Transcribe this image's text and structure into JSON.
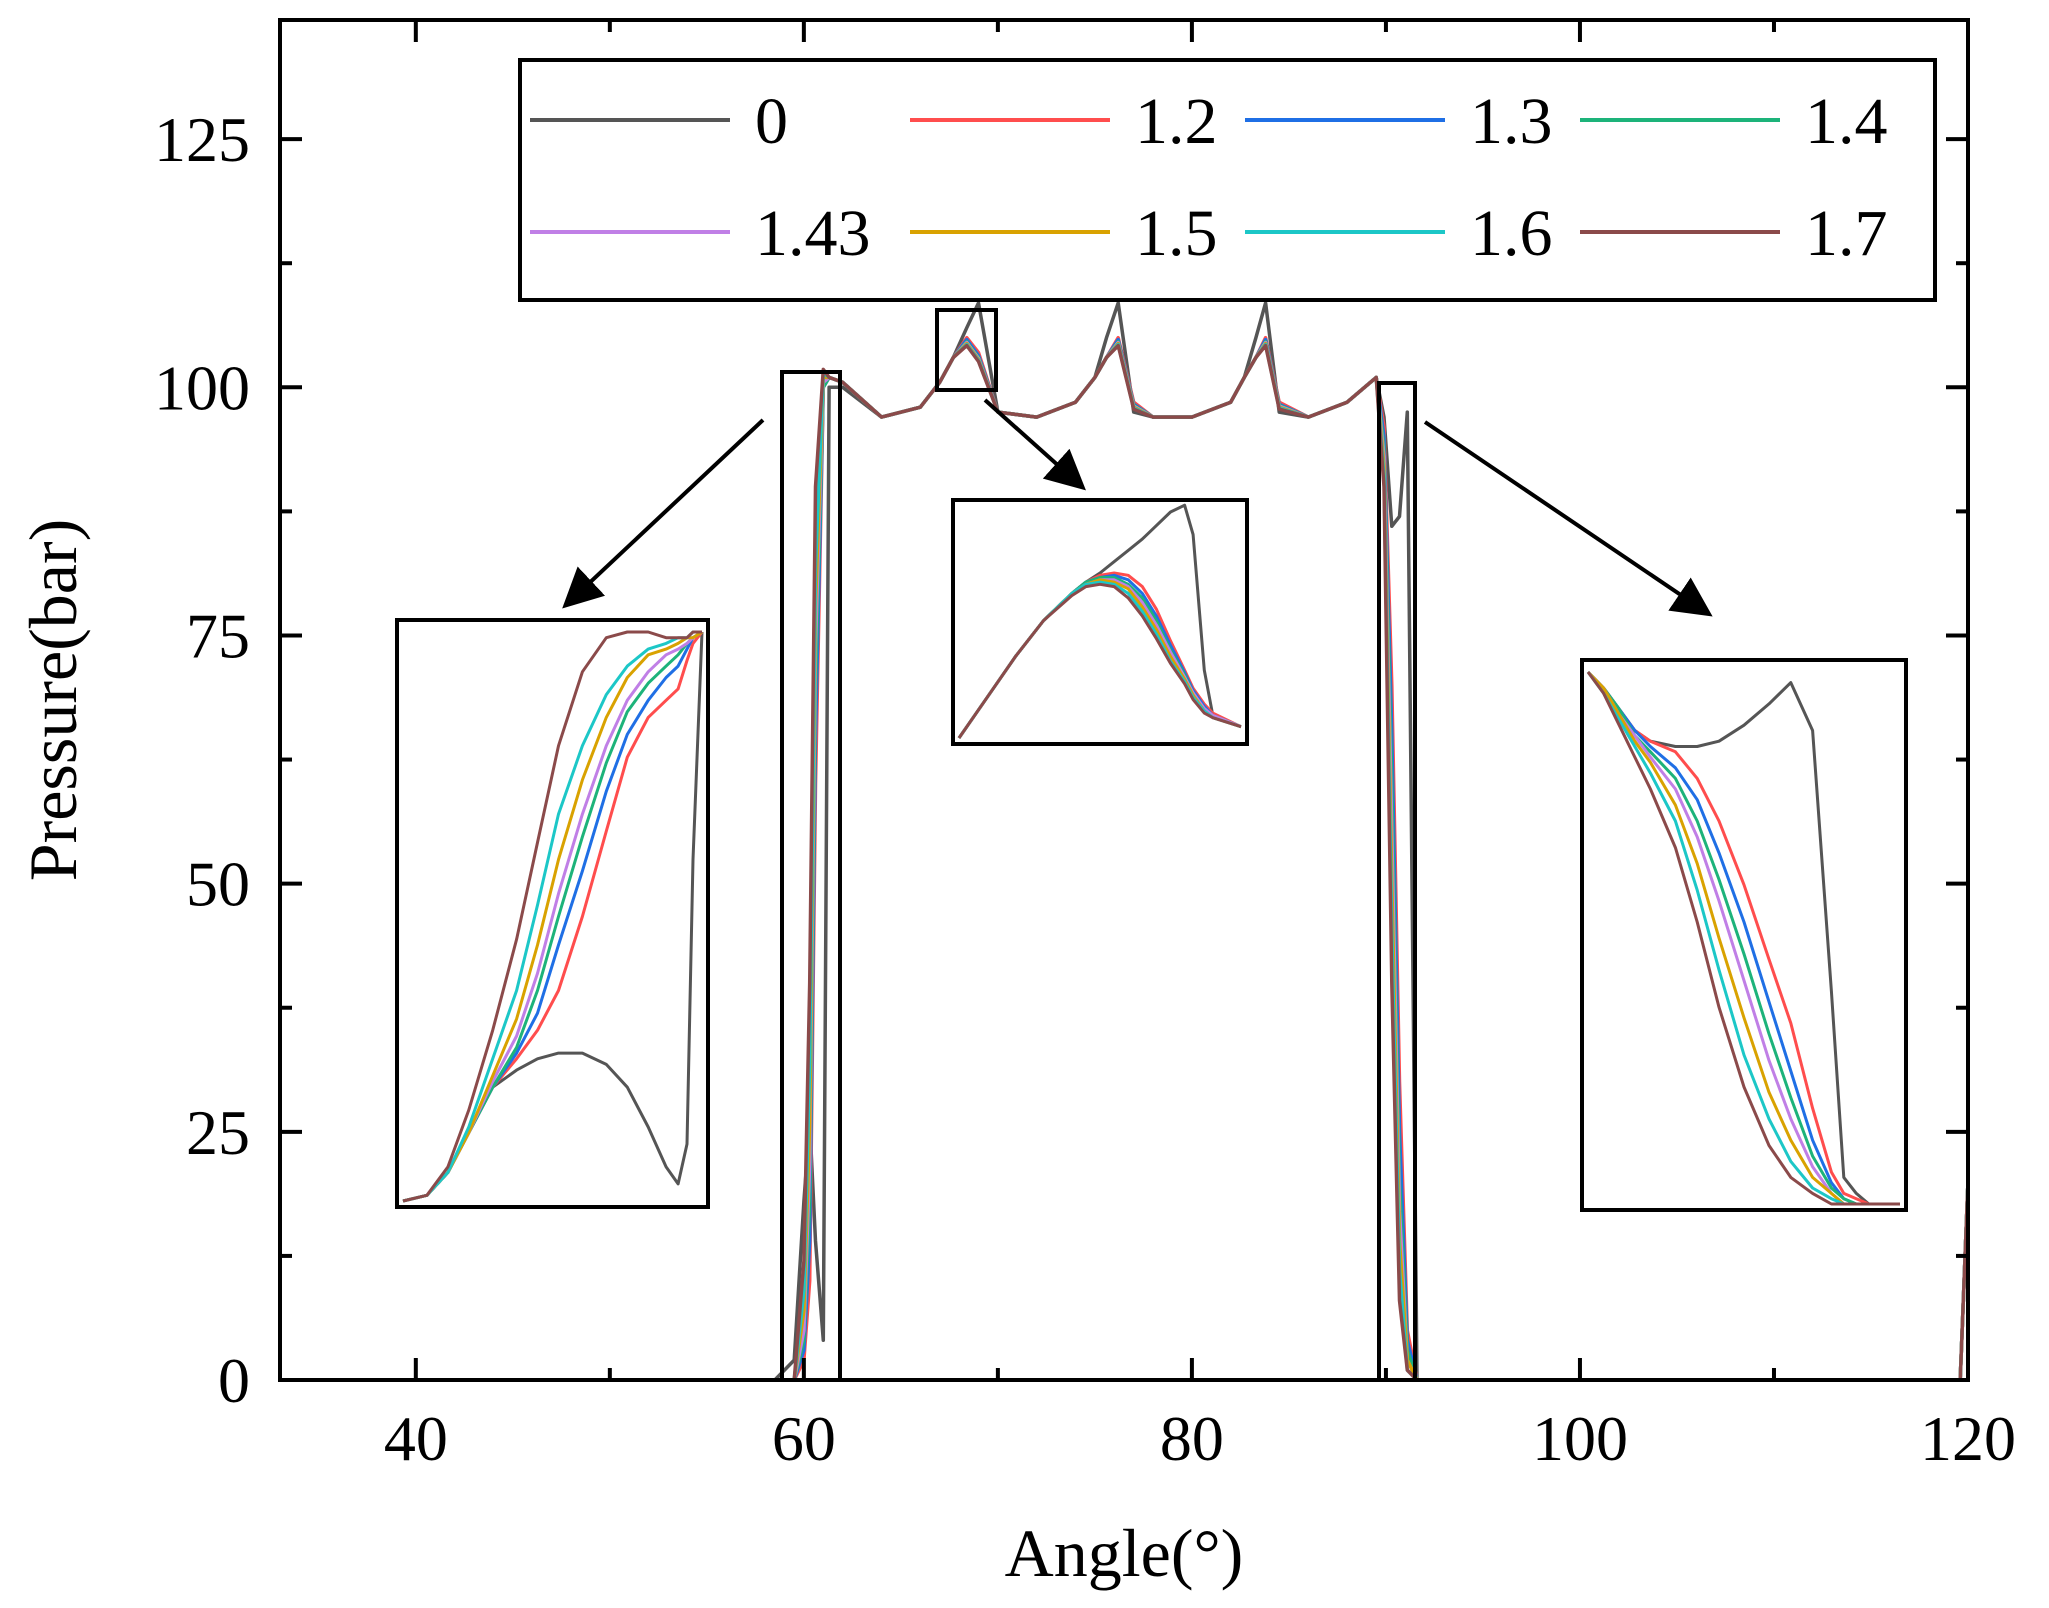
{
  "chart_data": {
    "type": "line",
    "title": "",
    "xlabel": "Angle(°)",
    "ylabel": "Pressure(bar)",
    "xlim": [
      33,
      120
    ],
    "ylim": [
      0,
      137
    ],
    "xticks": [
      "40",
      "60",
      "80",
      "100",
      "120"
    ],
    "xtick_values": [
      40,
      60,
      80,
      100,
      120
    ],
    "yticks": [
      "0",
      "25",
      "50",
      "75",
      "100",
      "125"
    ],
    "ytick_values": [
      0,
      25,
      50,
      75,
      100,
      125
    ],
    "grid": false,
    "legend_position": "top-right",
    "legend_columns": 4,
    "x": [
      33,
      58.5,
      59.5,
      60.0,
      60.3,
      60.6,
      61.0,
      61.3,
      62.0,
      64.0,
      66.0,
      67.0,
      67.7,
      68.4,
      69.0,
      70.0,
      72.0,
      74.0,
      75.0,
      75.6,
      76.2,
      77.0,
      78.0,
      80.0,
      82.0,
      82.7,
      83.3,
      83.8,
      84.5,
      86.0,
      88.0,
      89.5,
      89.9,
      90.3,
      90.7,
      91.1,
      91.6,
      92.0,
      119.6,
      120.0
    ],
    "series": [
      {
        "name": "0",
        "color": "#555555",
        "values": [
          0,
          0,
          2,
          18,
          26,
          14,
          4,
          100,
          100,
          97,
          98,
          100.5,
          103,
          106,
          108.5,
          97.5,
          97,
          98.5,
          101,
          105,
          108.5,
          97.5,
          97,
          97,
          98.5,
          101,
          105,
          108.5,
          97.5,
          97,
          98.5,
          101,
          97,
          86,
          87,
          97.5,
          0,
          0,
          0,
          20
        ]
      },
      {
        "name": "1.2",
        "color": "#ff4d4d",
        "values": [
          0,
          0,
          0,
          2,
          10,
          60,
          100,
          101,
          100.5,
          97,
          98,
          100.5,
          103,
          105,
          103.5,
          97.5,
          97,
          98.5,
          101,
          103,
          105,
          98.5,
          97,
          97,
          98.5,
          101,
          103,
          105,
          98.5,
          97,
          98.5,
          101,
          96,
          70,
          30,
          5,
          0,
          0,
          0,
          20
        ]
      },
      {
        "name": "1.3",
        "color": "#1f6fe5",
        "values": [
          0,
          0,
          0,
          3,
          14,
          65,
          100,
          101,
          100.5,
          97,
          98,
          100.5,
          103,
          104.8,
          103.2,
          97.5,
          97,
          98.5,
          101,
          103,
          104.8,
          98.3,
          97,
          97,
          98.5,
          101,
          103,
          104.8,
          98.3,
          97,
          98.5,
          101,
          95,
          65,
          25,
          4,
          0,
          0,
          0,
          20
        ]
      },
      {
        "name": "1.4",
        "color": "#1db37a",
        "values": [
          0,
          0,
          0,
          4,
          18,
          70,
          100,
          101,
          100.5,
          97,
          98,
          100.5,
          103,
          104.6,
          103,
          97.5,
          97,
          98.5,
          101,
          103,
          104.6,
          98.2,
          97,
          97,
          98.5,
          101,
          103,
          104.6,
          98.2,
          97,
          98.5,
          101,
          94,
          60,
          20,
          3,
          0,
          0,
          0,
          20
        ]
      },
      {
        "name": "1.43",
        "color": "#c07fe6",
        "values": [
          0,
          0,
          0,
          5,
          22,
          74,
          100.5,
          101,
          100.5,
          97,
          98,
          100.5,
          103,
          104.5,
          102.9,
          97.5,
          97,
          98.5,
          101,
          103,
          104.5,
          98.1,
          97,
          97,
          98.5,
          101,
          103,
          104.5,
          98.1,
          97,
          98.5,
          101,
          93,
          55,
          17,
          2,
          0,
          0,
          0,
          20
        ]
      },
      {
        "name": "1.5",
        "color": "#d9a200",
        "values": [
          0,
          0,
          0,
          7,
          26,
          78,
          101,
          101,
          100.5,
          97,
          98,
          100.5,
          103,
          104.4,
          102.8,
          97.5,
          97,
          98.5,
          101,
          103,
          104.4,
          98,
          97,
          97,
          98.5,
          101,
          103,
          104.4,
          98,
          97,
          98.5,
          101,
          92,
          50,
          14,
          2,
          0,
          0,
          0,
          20
        ]
      },
      {
        "name": "1.6",
        "color": "#1cc7c7",
        "values": [
          0,
          0,
          0,
          9,
          32,
          82,
          101.5,
          101,
          100.5,
          97,
          98,
          100.5,
          103,
          104.3,
          102.7,
          97.5,
          97,
          98.5,
          101,
          103,
          104.3,
          97.9,
          97,
          97,
          98.5,
          101,
          103,
          104.3,
          97.9,
          97,
          98.5,
          101,
          91,
          45,
          11,
          1,
          0,
          0,
          0,
          20
        ]
      },
      {
        "name": "1.7",
        "color": "#8b4a4a",
        "values": [
          0,
          0,
          0,
          12,
          40,
          90,
          101.8,
          101,
          100.5,
          97,
          98,
          100.5,
          103,
          104.2,
          102.6,
          97.5,
          97,
          98.5,
          101,
          103,
          104.2,
          97.8,
          97,
          97,
          98.5,
          101,
          103,
          104.2,
          97.8,
          97,
          98.5,
          101,
          90,
          40,
          8,
          1,
          0,
          0,
          0,
          20
        ]
      }
    ],
    "inset_left": {
      "x": [
        0,
        0.08,
        0.15,
        0.22,
        0.3,
        0.38,
        0.45,
        0.52,
        0.6,
        0.68,
        0.75,
        0.82,
        0.88,
        0.92,
        0.95,
        0.97,
        1.0
      ],
      "series": [
        {
          "name": "0",
          "values": [
            0,
            0.01,
            0.05,
            0.12,
            0.2,
            0.23,
            0.25,
            0.26,
            0.26,
            0.24,
            0.2,
            0.13,
            0.06,
            0.03,
            0.1,
            0.6,
            1.0
          ]
        },
        {
          "name": "1.2",
          "values": [
            0,
            0.01,
            0.05,
            0.12,
            0.2,
            0.25,
            0.3,
            0.37,
            0.5,
            0.65,
            0.78,
            0.85,
            0.88,
            0.9,
            0.95,
            0.98,
            1.0
          ]
        },
        {
          "name": "1.3",
          "values": [
            0,
            0.01,
            0.05,
            0.12,
            0.2,
            0.26,
            0.33,
            0.45,
            0.58,
            0.72,
            0.82,
            0.88,
            0.92,
            0.94,
            0.97,
            0.99,
            1.0
          ]
        },
        {
          "name": "1.4",
          "values": [
            0,
            0.01,
            0.05,
            0.12,
            0.2,
            0.27,
            0.37,
            0.5,
            0.64,
            0.77,
            0.86,
            0.91,
            0.94,
            0.96,
            0.98,
            0.99,
            1.0
          ]
        },
        {
          "name": "1.43",
          "values": [
            0,
            0.01,
            0.05,
            0.12,
            0.21,
            0.29,
            0.4,
            0.54,
            0.68,
            0.8,
            0.88,
            0.93,
            0.96,
            0.97,
            0.98,
            0.99,
            1.0
          ]
        },
        {
          "name": "1.5",
          "values": [
            0,
            0.01,
            0.05,
            0.12,
            0.22,
            0.32,
            0.45,
            0.6,
            0.74,
            0.85,
            0.92,
            0.96,
            0.97,
            0.98,
            0.99,
            0.99,
            1.0
          ]
        },
        {
          "name": "1.6",
          "values": [
            0,
            0.01,
            0.05,
            0.13,
            0.25,
            0.37,
            0.52,
            0.68,
            0.8,
            0.89,
            0.94,
            0.97,
            0.98,
            0.99,
            0.99,
            1.0,
            1.0
          ]
        },
        {
          "name": "1.7",
          "values": [
            0,
            0.01,
            0.06,
            0.16,
            0.3,
            0.46,
            0.63,
            0.8,
            0.93,
            0.99,
            1.0,
            1.0,
            0.99,
            0.99,
            0.99,
            1.0,
            1.0
          ]
        }
      ]
    },
    "inset_middle": {
      "x": [
        0,
        0.1,
        0.2,
        0.3,
        0.4,
        0.45,
        0.5,
        0.55,
        0.6,
        0.65,
        0.7,
        0.75,
        0.8,
        0.83,
        0.87,
        0.9,
        1.0
      ],
      "series": [
        {
          "name": "0",
          "values": [
            0,
            0.18,
            0.36,
            0.52,
            0.64,
            0.69,
            0.73,
            0.78,
            0.83,
            0.88,
            0.94,
            1.0,
            1.03,
            0.9,
            0.3,
            0.1,
            0.05
          ]
        },
        {
          "name": "1.2",
          "values": [
            0,
            0.18,
            0.36,
            0.52,
            0.64,
            0.69,
            0.72,
            0.73,
            0.72,
            0.67,
            0.57,
            0.43,
            0.3,
            0.22,
            0.15,
            0.11,
            0.05
          ]
        },
        {
          "name": "1.3",
          "values": [
            0,
            0.18,
            0.36,
            0.52,
            0.64,
            0.69,
            0.71,
            0.72,
            0.7,
            0.64,
            0.54,
            0.41,
            0.29,
            0.21,
            0.14,
            0.1,
            0.05
          ]
        },
        {
          "name": "1.4",
          "values": [
            0,
            0.18,
            0.36,
            0.52,
            0.64,
            0.69,
            0.71,
            0.71,
            0.68,
            0.62,
            0.52,
            0.39,
            0.28,
            0.2,
            0.13,
            0.1,
            0.05
          ]
        },
        {
          "name": "1.43",
          "values": [
            0,
            0.18,
            0.36,
            0.52,
            0.64,
            0.68,
            0.7,
            0.7,
            0.67,
            0.6,
            0.5,
            0.38,
            0.27,
            0.2,
            0.13,
            0.1,
            0.05
          ]
        },
        {
          "name": "1.5",
          "values": [
            0,
            0.18,
            0.36,
            0.52,
            0.64,
            0.68,
            0.7,
            0.69,
            0.66,
            0.58,
            0.48,
            0.36,
            0.26,
            0.19,
            0.12,
            0.09,
            0.05
          ]
        },
        {
          "name": "1.6",
          "values": [
            0,
            0.18,
            0.36,
            0.52,
            0.64,
            0.68,
            0.69,
            0.68,
            0.64,
            0.56,
            0.46,
            0.34,
            0.25,
            0.18,
            0.12,
            0.09,
            0.05
          ]
        },
        {
          "name": "1.7",
          "values": [
            0,
            0.18,
            0.36,
            0.52,
            0.63,
            0.67,
            0.68,
            0.67,
            0.62,
            0.54,
            0.44,
            0.33,
            0.24,
            0.17,
            0.11,
            0.09,
            0.05
          ]
        }
      ]
    },
    "inset_right": {
      "x": [
        0,
        0.05,
        0.1,
        0.15,
        0.2,
        0.28,
        0.35,
        0.42,
        0.5,
        0.58,
        0.65,
        0.72,
        0.78,
        0.82,
        0.86,
        0.9,
        0.94,
        1.0
      ],
      "series": [
        {
          "name": "0",
          "values": [
            1.0,
            0.97,
            0.93,
            0.89,
            0.87,
            0.86,
            0.86,
            0.87,
            0.9,
            0.94,
            0.98,
            0.89,
            0.4,
            0.05,
            0.02,
            0.0,
            0.0,
            0.0
          ]
        },
        {
          "name": "1.2",
          "values": [
            1.0,
            0.97,
            0.93,
            0.89,
            0.87,
            0.85,
            0.8,
            0.72,
            0.6,
            0.46,
            0.34,
            0.18,
            0.06,
            0.02,
            0.01,
            0.0,
            0.0,
            0.0
          ]
        },
        {
          "name": "1.3",
          "values": [
            1.0,
            0.97,
            0.93,
            0.89,
            0.86,
            0.82,
            0.76,
            0.66,
            0.53,
            0.38,
            0.25,
            0.12,
            0.04,
            0.01,
            0.0,
            0.0,
            0.0,
            0.0
          ]
        },
        {
          "name": "1.4",
          "values": [
            1.0,
            0.97,
            0.93,
            0.88,
            0.85,
            0.8,
            0.72,
            0.61,
            0.47,
            0.32,
            0.2,
            0.09,
            0.03,
            0.01,
            0.0,
            0.0,
            0.0,
            0.0
          ]
        },
        {
          "name": "1.43",
          "values": [
            1.0,
            0.97,
            0.92,
            0.88,
            0.84,
            0.78,
            0.69,
            0.57,
            0.42,
            0.27,
            0.16,
            0.07,
            0.02,
            0.0,
            0.0,
            0.0,
            0.0,
            0.0
          ]
        },
        {
          "name": "1.5",
          "values": [
            1.0,
            0.97,
            0.92,
            0.87,
            0.83,
            0.75,
            0.64,
            0.5,
            0.35,
            0.21,
            0.12,
            0.05,
            0.02,
            0.0,
            0.0,
            0.0,
            0.0,
            0.0
          ]
        },
        {
          "name": "1.6",
          "values": [
            1.0,
            0.96,
            0.91,
            0.86,
            0.81,
            0.72,
            0.59,
            0.44,
            0.28,
            0.16,
            0.08,
            0.03,
            0.01,
            0.0,
            0.0,
            0.0,
            0.0,
            0.0
          ]
        },
        {
          "name": "1.7",
          "values": [
            1.0,
            0.96,
            0.9,
            0.84,
            0.78,
            0.67,
            0.53,
            0.37,
            0.22,
            0.11,
            0.05,
            0.02,
            0.0,
            0.0,
            0.0,
            0.0,
            0.0,
            0.0
          ]
        }
      ]
    }
  }
}
